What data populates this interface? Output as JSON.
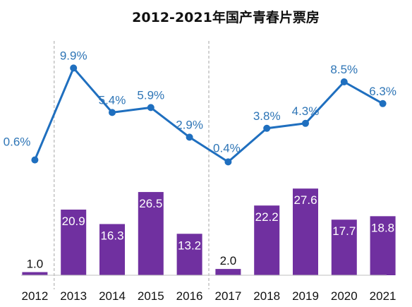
{
  "chart_data": {
    "type": "bar+line",
    "title": "2012-2021年国产青春片票房",
    "categories": [
      "2012",
      "2013",
      "2014",
      "2015",
      "2016",
      "2017",
      "2018",
      "2019",
      "2020",
      "2021"
    ],
    "series": [
      {
        "type": "bar",
        "values": [
          1.0,
          20.9,
          16.3,
          26.5,
          13.2,
          2.0,
          22.2,
          27.6,
          17.7,
          18.8
        ]
      },
      {
        "type": "line",
        "values": [
          0.6,
          9.9,
          5.4,
          5.9,
          2.9,
          0.4,
          3.8,
          4.3,
          8.5,
          6.3
        ],
        "labels": [
          "0.6%",
          "9.9%",
          "5.4%",
          "5.9%",
          "2.9%",
          "0.4%",
          "3.8%",
          "4.3%",
          "8.5%",
          "6.3%"
        ]
      }
    ],
    "bar_labels": [
      "1.0",
      "20.9",
      "16.3",
      "26.5",
      "13.2",
      "2.0",
      "22.2",
      "27.6",
      "17.7",
      "18.8"
    ],
    "colors": {
      "bar": "#7030a0",
      "line": "#1f6fbf",
      "label_line": "#2e75b6",
      "divider": "#a6a6a6",
      "axis": "#bfbfbf"
    },
    "dividers_after": [
      "2012",
      "2016"
    ],
    "grid": false,
    "legend": "none"
  }
}
